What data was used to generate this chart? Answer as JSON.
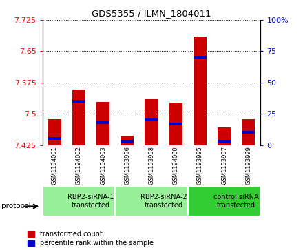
{
  "title": "GDS5355 / ILMN_1804011",
  "samples": [
    "GSM1194001",
    "GSM1194002",
    "GSM1194003",
    "GSM1193996",
    "GSM1193998",
    "GSM1194000",
    "GSM1193995",
    "GSM1193997",
    "GSM1193999"
  ],
  "red_values": [
    7.487,
    7.558,
    7.528,
    7.447,
    7.535,
    7.527,
    7.685,
    7.467,
    7.487
  ],
  "blue_values_pct": [
    5,
    35,
    18,
    3,
    20,
    17,
    70,
    3,
    10
  ],
  "ymin": 7.425,
  "ymax": 7.725,
  "yticks": [
    7.425,
    7.5,
    7.575,
    7.65,
    7.725
  ],
  "y2ticks": [
    0,
    25,
    50,
    75,
    100
  ],
  "groups": [
    {
      "label": "RBP2-siRNA-1\ntransfected",
      "start": 0,
      "end": 3,
      "color": "#99ee99"
    },
    {
      "label": "RBP2-siRNA-2\ntransfected",
      "start": 3,
      "end": 6,
      "color": "#99ee99"
    },
    {
      "label": "control siRNA\ntransfected",
      "start": 6,
      "end": 9,
      "color": "#33cc33"
    }
  ],
  "bar_width": 0.55,
  "bar_color": "#cc0000",
  "blue_color": "#0000cc",
  "sample_bg": "#cccccc",
  "plot_bg": "#ffffff",
  "legend_red": "transformed count",
  "legend_blue": "percentile rank within the sample",
  "protocol_label": "protocol"
}
